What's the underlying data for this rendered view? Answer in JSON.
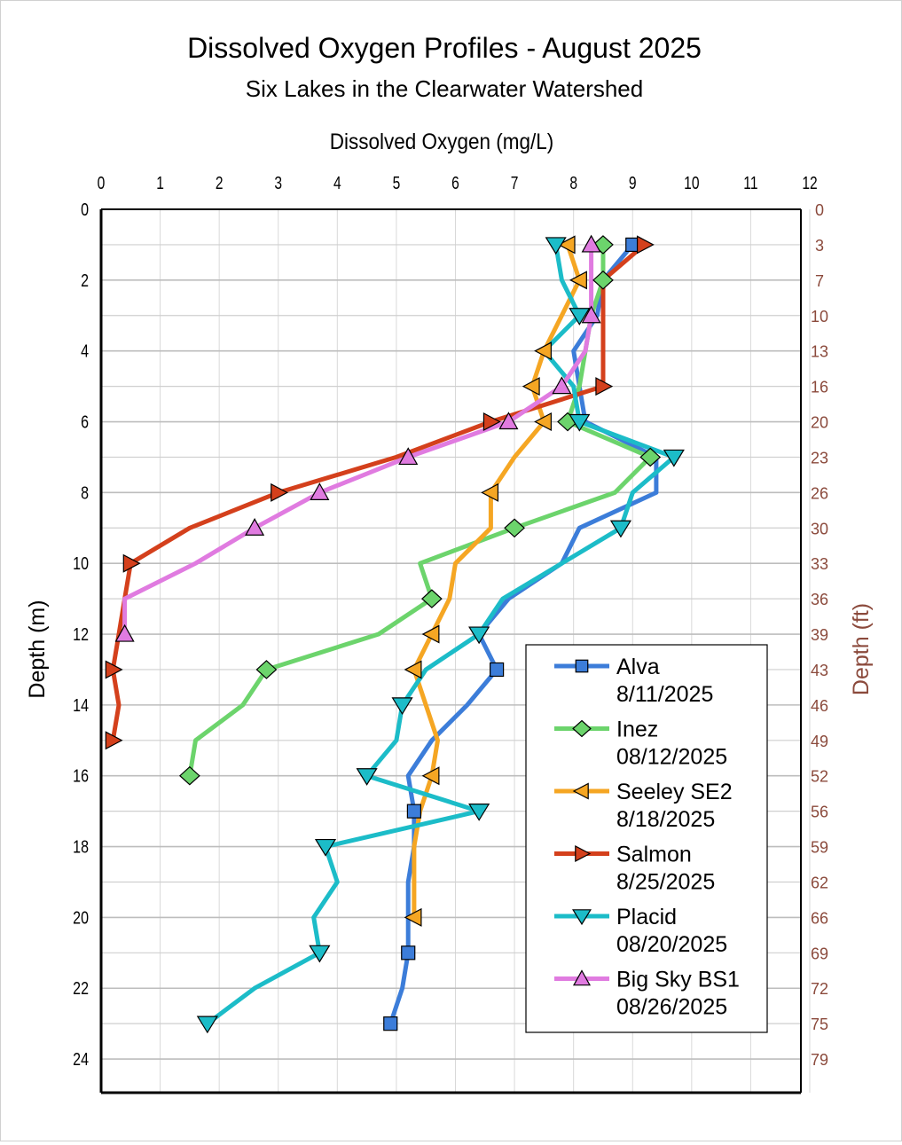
{
  "chart_data": {
    "type": "line",
    "title": "Dissolved Oxygen Profiles - August 2025",
    "subtitle": "Six Lakes in the Clearwater Watershed",
    "xlabel": "Dissolved Oxygen (mg/L)",
    "ylabel": "Depth (m)",
    "y2label": "Depth (ft)",
    "xlim": [
      0,
      12
    ],
    "ylim": [
      25,
      0
    ],
    "x_ticks": [
      "0",
      "1",
      "2",
      "3",
      "4",
      "5",
      "6",
      "7",
      "8",
      "9",
      "10",
      "11",
      "12"
    ],
    "y_ticks": [
      "0",
      "2",
      "4",
      "6",
      "8",
      "10",
      "12",
      "14",
      "16",
      "18",
      "20",
      "22",
      "24"
    ],
    "y2_ticks": [
      {
        "m": 0,
        "label": "0"
      },
      {
        "m": 1,
        "label": "3"
      },
      {
        "m": 2,
        "label": "7"
      },
      {
        "m": 3,
        "label": "10"
      },
      {
        "m": 4,
        "label": "13"
      },
      {
        "m": 5,
        "label": "16"
      },
      {
        "m": 6,
        "label": "20"
      },
      {
        "m": 7,
        "label": "23"
      },
      {
        "m": 8,
        "label": "26"
      },
      {
        "m": 9,
        "label": "30"
      },
      {
        "m": 10,
        "label": "33"
      },
      {
        "m": 11,
        "label": "36"
      },
      {
        "m": 12,
        "label": "39"
      },
      {
        "m": 13,
        "label": "43"
      },
      {
        "m": 14,
        "label": "46"
      },
      {
        "m": 15,
        "label": "49"
      },
      {
        "m": 16,
        "label": "52"
      },
      {
        "m": 17,
        "label": "56"
      },
      {
        "m": 18,
        "label": "59"
      },
      {
        "m": 19,
        "label": "62"
      },
      {
        "m": 20,
        "label": "66"
      },
      {
        "m": 21,
        "label": "69"
      },
      {
        "m": 22,
        "label": "72"
      },
      {
        "m": 23,
        "label": "75"
      },
      {
        "m": 24,
        "label": "79"
      }
    ],
    "grid": true,
    "legend_position": "bottom-right",
    "series": [
      {
        "name": "Alva",
        "date": "8/11/2025",
        "color": "#3c7dd9",
        "marker": "square",
        "depth": [
          1,
          2,
          3,
          4,
          5,
          6,
          7,
          8,
          9,
          10,
          11,
          12,
          13,
          14,
          15,
          16,
          17,
          18,
          19,
          20,
          21,
          22,
          23
        ],
        "do": [
          9.0,
          8.5,
          8.4,
          8.0,
          8.1,
          8.2,
          9.4,
          9.4,
          8.1,
          7.8,
          6.9,
          6.4,
          6.7,
          6.2,
          5.6,
          5.2,
          5.3,
          5.3,
          5.2,
          5.2,
          5.2,
          5.1,
          4.9
        ]
      },
      {
        "name": "Inez",
        "date": "08/12/2025",
        "color": "#6cd46c",
        "marker": "diamond",
        "depth": [
          1,
          2,
          3,
          4,
          5,
          6,
          7,
          8,
          9,
          10,
          11,
          12,
          13,
          14,
          15,
          16
        ],
        "do": [
          8.5,
          8.5,
          8.3,
          8.2,
          8.1,
          7.9,
          9.3,
          8.7,
          7.0,
          5.4,
          5.6,
          4.7,
          2.8,
          2.4,
          1.6,
          1.5
        ]
      },
      {
        "name": "Seeley SE2",
        "date": "8/18/2025",
        "color": "#f5a623",
        "marker": "triangle-left",
        "depth": [
          1,
          2,
          3,
          4,
          5,
          6,
          7,
          8,
          9,
          10,
          11,
          12,
          13,
          14,
          15,
          16,
          17,
          18,
          19,
          20
        ],
        "do": [
          7.9,
          8.1,
          7.8,
          7.5,
          7.3,
          7.5,
          7.0,
          6.6,
          6.6,
          6.0,
          5.9,
          5.6,
          5.3,
          5.5,
          5.7,
          5.6,
          5.4,
          5.3,
          5.3,
          5.3
        ]
      },
      {
        "name": "Salmon",
        "date": "8/25/2025",
        "color": "#d4401c",
        "marker": "triangle-right",
        "depth": [
          1,
          2,
          3,
          4,
          5,
          6,
          7,
          8,
          9,
          10,
          11,
          12,
          13,
          14,
          15
        ],
        "do": [
          9.2,
          8.5,
          8.5,
          8.5,
          8.5,
          6.6,
          5.0,
          3.0,
          1.5,
          0.5,
          0.4,
          0.3,
          0.2,
          0.3,
          0.2
        ]
      },
      {
        "name": "Placid",
        "date": "08/20/2025",
        "color": "#1cbcc8",
        "marker": "triangle-down",
        "depth": [
          1,
          2,
          3,
          4,
          5,
          6,
          7,
          8,
          9,
          10,
          11,
          12,
          13,
          14,
          15,
          16,
          17,
          18,
          19,
          20,
          21,
          22,
          23
        ],
        "do": [
          7.7,
          7.8,
          8.1,
          7.5,
          8.0,
          8.1,
          9.7,
          9.0,
          8.8,
          7.8,
          6.8,
          6.4,
          5.5,
          5.1,
          5.0,
          4.5,
          6.4,
          3.8,
          4.0,
          3.6,
          3.7,
          2.6,
          1.8
        ]
      },
      {
        "name": "Big Sky BS1",
        "date": "08/26/2025",
        "color": "#e07be0",
        "marker": "triangle-up",
        "depth": [
          1,
          2,
          3,
          4,
          5,
          6,
          7,
          8,
          9,
          10,
          11,
          12
        ],
        "do": [
          8.3,
          8.3,
          8.3,
          8.2,
          7.8,
          6.9,
          5.2,
          3.7,
          2.6,
          1.6,
          0.4,
          0.4
        ]
      }
    ]
  }
}
